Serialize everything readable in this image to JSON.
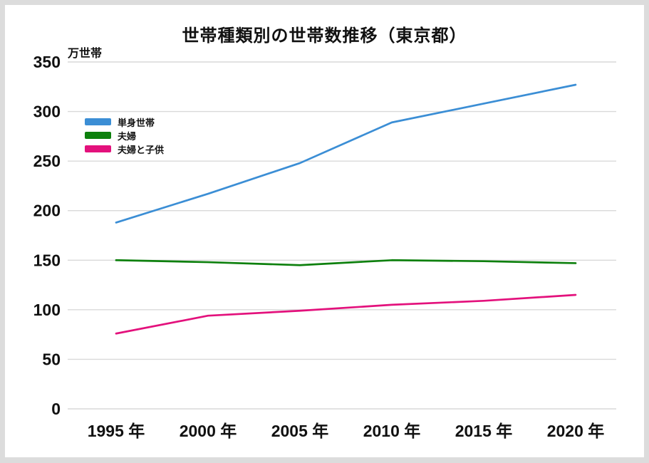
{
  "chart_data": {
    "type": "line",
    "title": "世帯種類別の世帯数推移（東京都）",
    "unit_label": "万世帯",
    "xlabel": "",
    "ylabel": "万世帯",
    "x": [
      1995,
      2000,
      2005,
      2010,
      2015,
      2020
    ],
    "x_tick_labels": [
      "1995 年",
      "2000 年",
      "2005 年",
      "2010 年",
      "2015 年",
      "2020 年"
    ],
    "y_ticks": [
      0,
      50,
      100,
      150,
      200,
      250,
      300,
      350
    ],
    "ylim": [
      0,
      350
    ],
    "grid": "horizontal-only",
    "legend_position": "upper-left-inside",
    "series": [
      {
        "name": "単身世帯",
        "color": "#3b8ed5",
        "values": [
          188,
          217,
          248,
          289,
          308,
          327
        ]
      },
      {
        "name": "夫婦",
        "color": "#0d800d",
        "values": [
          150,
          148,
          145,
          150,
          149,
          147
        ]
      },
      {
        "name": "夫婦と子供",
        "color": "#e3117c",
        "values": [
          76,
          94,
          99,
          105,
          109,
          115
        ]
      }
    ]
  },
  "colors": {
    "grid": "#d9d9d9",
    "text": "#111111",
    "frame_border": "#dcdcdc",
    "panel_background": "#ffffff"
  }
}
